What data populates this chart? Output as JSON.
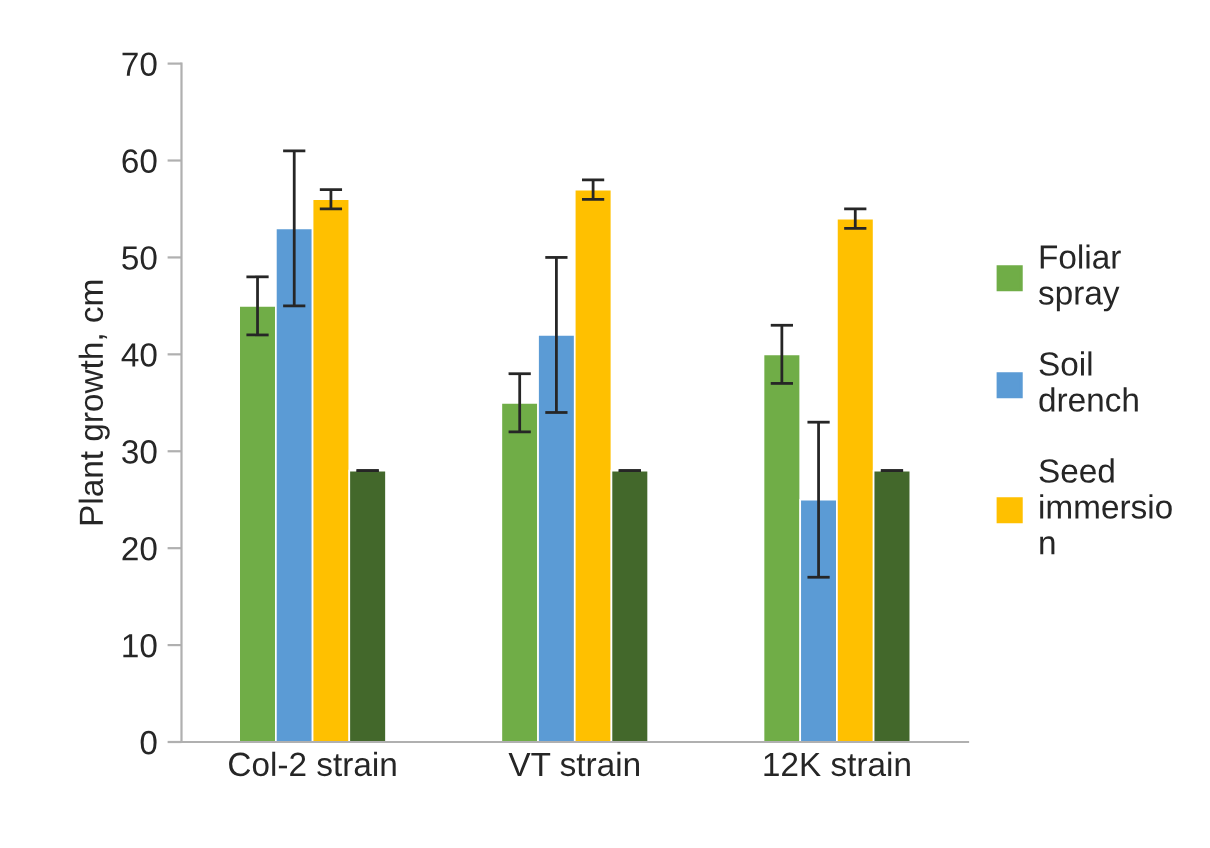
{
  "chart_data": {
    "type": "bar",
    "ylabel": "Plant growth, cm",
    "categories": [
      "Col-2 strain",
      "VT strain",
      "12K strain"
    ],
    "series": [
      {
        "name": "Foliar spray",
        "color": "#70ad47",
        "values": [
          45,
          35,
          40
        ],
        "errors": [
          3,
          3,
          3
        ]
      },
      {
        "name": "Soil drench",
        "color": "#5b9bd5",
        "values": [
          53,
          42,
          25
        ],
        "errors": [
          8,
          8,
          8
        ]
      },
      {
        "name": "Seed immersion",
        "color": "#ffc000",
        "values": [
          56,
          57,
          54
        ],
        "errors": [
          1,
          1,
          1
        ]
      },
      {
        "color": "#43682b",
        "values": [
          28,
          28,
          28
        ],
        "errors": [
          0,
          0,
          0
        ]
      }
    ],
    "ylim": [
      0,
      70
    ],
    "yticks": [
      0,
      10,
      20,
      30,
      40,
      50,
      60,
      70
    ],
    "grid": false,
    "legend": "right"
  }
}
